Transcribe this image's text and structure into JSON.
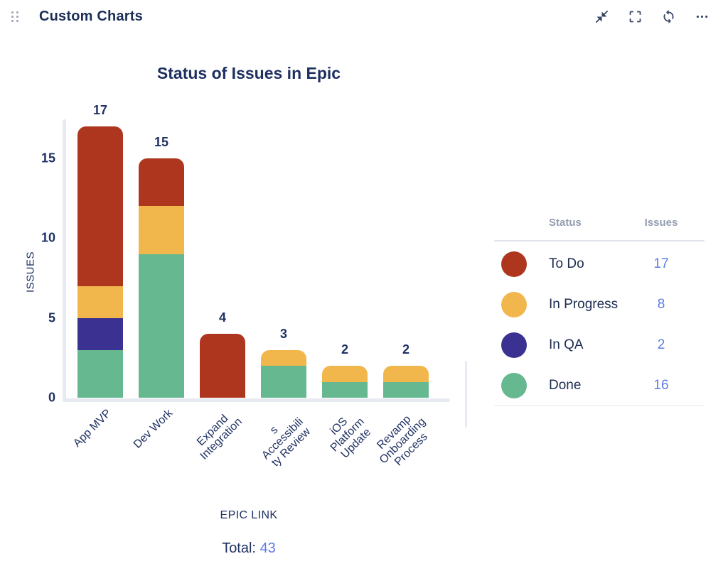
{
  "header": {
    "title": "Custom Charts",
    "actions": [
      {
        "label": "collapse",
        "icon": "collapse-icon"
      },
      {
        "label": "fullscreen",
        "icon": "fullscreen-icon"
      },
      {
        "label": "refresh",
        "icon": "refresh-icon"
      },
      {
        "label": "more",
        "icon": "ellipsis-icon"
      }
    ]
  },
  "chart": {
    "title": "Status of Issues in Epic",
    "y_axis_title": "ISSUES",
    "x_axis_title": "EPIC LINK",
    "total_label": "Total:",
    "total_value": "43"
  },
  "chart_data": {
    "type": "bar",
    "stacked": true,
    "title": "Status of Issues in Epic",
    "xlabel": "EPIC LINK",
    "ylabel": "ISSUES",
    "categories": [
      "App MVP",
      "Dev Work",
      "Expand Integration",
      "s Accessibili ty Review",
      "iOS Platform Update",
      "Revamp Onboarding Process"
    ],
    "category_display_lines": [
      [
        "App MVP"
      ],
      [
        "Dev Work"
      ],
      [
        "Expand",
        "Integration"
      ],
      [
        "s",
        "Accessibili",
        "ty Review"
      ],
      [
        "iOS",
        "Platform",
        "Update"
      ],
      [
        "Revamp",
        "Onboarding",
        "Process"
      ]
    ],
    "series": [
      {
        "name": "Done",
        "color": "#65b890",
        "values": [
          3,
          9,
          0,
          2,
          1,
          1
        ]
      },
      {
        "name": "In QA",
        "color": "#3b3191",
        "values": [
          2,
          0,
          0,
          0,
          0,
          0
        ]
      },
      {
        "name": "In Progress",
        "color": "#f1b74c",
        "values": [
          2,
          3,
          0,
          1,
          1,
          1
        ]
      },
      {
        "name": "To Do",
        "color": "#ae361f",
        "values": [
          10,
          3,
          4,
          0,
          0,
          0
        ]
      }
    ],
    "bar_totals": [
      17,
      15,
      4,
      3,
      2,
      2
    ],
    "y_ticks": [
      0,
      5,
      10,
      15
    ],
    "ylim": [
      0,
      17.5
    ],
    "legend_position": "right",
    "grid": false,
    "total": 43
  },
  "legend": {
    "columns": {
      "status": "Status",
      "issues": "Issues"
    },
    "rows": [
      {
        "status": "To Do",
        "color": "#ae361f",
        "issues": 17
      },
      {
        "status": "In Progress",
        "color": "#f1b74c",
        "issues": 8
      },
      {
        "status": "In QA",
        "color": "#3b3191",
        "issues": 2
      },
      {
        "status": "Done",
        "color": "#65b890",
        "issues": 16
      }
    ]
  },
  "colors": {
    "to_do": "#ae361f",
    "in_progress": "#f1b74c",
    "in_qa": "#3b3191",
    "done": "#65b890",
    "navy_text": "#203163",
    "blue_value": "#5d7ce8",
    "axis_gray": "#e8eaf1",
    "legend_header_gray": "#959eae"
  }
}
